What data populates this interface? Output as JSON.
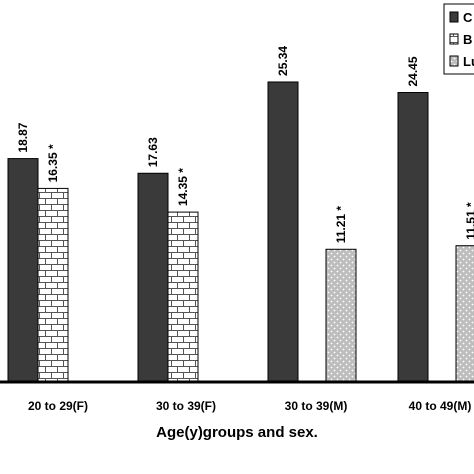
{
  "chart_data": {
    "type": "bar",
    "xlabel": "Age(y)groups and sex.",
    "categories": [
      "20 to 29(F)",
      "30 to 39(F)",
      "30 to 39(M)",
      "40 to 49(M)"
    ],
    "series": [
      {
        "name": "C",
        "pattern": "solid-dark",
        "values": [
          18.87,
          17.63,
          25.34,
          24.45
        ]
      },
      {
        "name": "B",
        "pattern": "brick",
        "values": [
          16.35,
          14.35,
          null,
          null
        ]
      },
      {
        "name": "Lu",
        "pattern": "dotted-gray",
        "values": [
          null,
          null,
          11.21,
          11.51
        ]
      }
    ],
    "data_labels": [
      [
        "18.87",
        "17.63",
        "25.34",
        "24.45"
      ],
      [
        "16.35 *",
        "14.35 *",
        "",
        ""
      ],
      [
        "",
        "",
        "11.21 *",
        "11.51 *"
      ]
    ],
    "ylim": [
      0,
      30
    ],
    "grid": false,
    "legend_position": "top-right",
    "colors": {
      "dark_bar": "#3a3a3a",
      "dotted_bg": "#bdbdbd",
      "brick_line": "#555555"
    }
  }
}
